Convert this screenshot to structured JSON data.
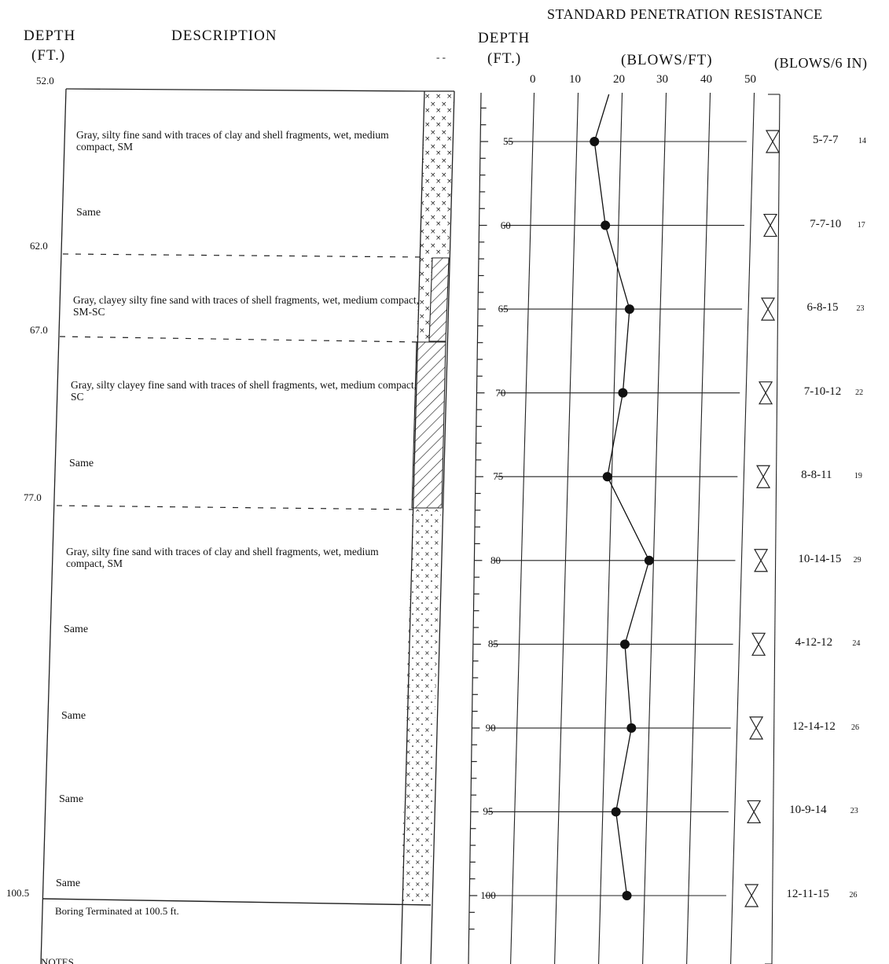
{
  "headers": {
    "spt_title": "STANDARD PENETRATION RESISTANCE",
    "depth_left": "DEPTH",
    "ft_left": "(FT.)",
    "description": "DESCRIPTION",
    "depth_mid": "DEPTH",
    "ft_mid": "(FT.)",
    "blows_ft": "(BLOWS/FT)",
    "blows_6in": "(BLOWS/6 IN)",
    "dash_mark": "- -"
  },
  "strata_depths": [
    "52.0",
    "62.0",
    "67.0",
    "77.0",
    "100.5"
  ],
  "descriptions": [
    "Gray, silty fine sand with traces of clay and shell fragments, wet, medium compact, SM",
    "Same",
    "Gray, clayey silty fine sand with traces of shell fragments, wet, medium compact, SM-SC",
    "Gray, silty clayey fine sand with traces of shell fragments, wet, medium compact, SC",
    "Same",
    "Gray, silty fine sand with traces of clay and shell fragments, wet, medium compact, SM",
    "Same",
    "Same",
    "Same",
    "Same",
    "Boring Terminated at 100.5 ft.",
    "NOTES"
  ],
  "axis_ticks": [
    "0",
    "10",
    "20",
    "30",
    "40",
    "50"
  ],
  "depth_labels": [
    "55",
    "60",
    "65",
    "70",
    "75",
    "80",
    "85",
    "90",
    "95",
    "100"
  ],
  "blow_counts": [
    "5-7-7",
    "7-7-10",
    "6-8-15",
    "7-10-12",
    "8-8-11",
    "10-14-15",
    "4-12-12",
    "12-14-12",
    "10-9-14",
    "12-11-15"
  ],
  "hand_totals": [
    "14",
    "17",
    "23",
    "22",
    "19",
    "29",
    "24",
    "26",
    "23",
    "26"
  ],
  "chart_data": {
    "type": "line",
    "xlabel": "(BLOWS/FT)",
    "ylabel": "DEPTH (FT.)",
    "xlim": [
      0,
      50
    ],
    "ylim": [
      52,
      102
    ],
    "x": [
      14,
      17,
      23,
      22,
      19,
      29,
      24,
      26,
      23,
      26
    ],
    "y": [
      55,
      60,
      65,
      70,
      75,
      80,
      85,
      90,
      95,
      100
    ],
    "grid": true
  }
}
